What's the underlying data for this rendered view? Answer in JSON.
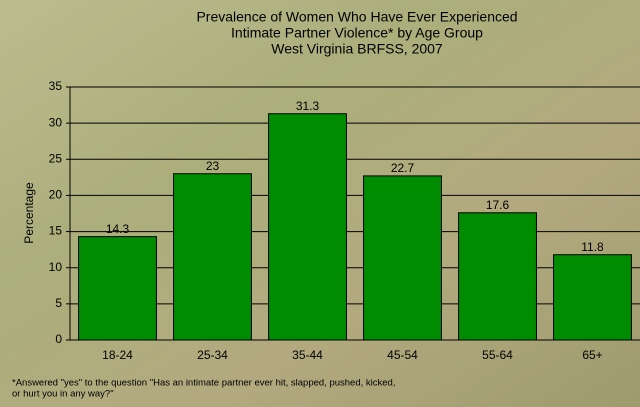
{
  "chart_data": {
    "type": "bar",
    "title": [
      "Prevalence of Women Who Have Ever Experienced",
      "Intimate Partner Violence* by Age Group",
      "West Virginia BRFSS, 2007"
    ],
    "ylabel": "Percentage",
    "categories": [
      "18-24",
      "25-34",
      "35-44",
      "45-54",
      "55-64",
      "65+"
    ],
    "values": [
      14.3,
      23,
      31.3,
      22.7,
      17.6,
      11.8
    ],
    "color": "#008c00",
    "ylim": [
      0,
      35
    ],
    "yticks": [
      0,
      5,
      10,
      15,
      20,
      25,
      30,
      35
    ],
    "grid": true,
    "footnote": [
      "*Answered \"yes\" to the question \"Has an intimate partner ever hit, slapped, pushed, kicked,",
      "or hurt you in any way?\""
    ]
  }
}
